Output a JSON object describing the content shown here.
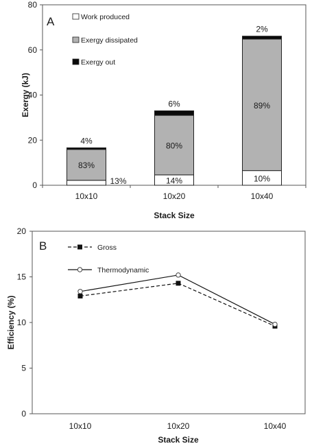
{
  "chart_data": [
    {
      "type": "bar",
      "stacked": true,
      "panel_label": "A",
      "categories": [
        "10x10",
        "10x20",
        "10x40"
      ],
      "series": [
        {
          "name": "Work produced",
          "values": [
            2.2,
            4.6,
            6.5
          ],
          "color": "#ffffff"
        },
        {
          "name": "Exergy dissipated",
          "values": [
            13.7,
            26.4,
            58.3
          ],
          "color": "#b2b2b2"
        },
        {
          "name": "Exergy out",
          "values": [
            0.7,
            2.0,
            1.3
          ],
          "color": "#0a0a0a"
        }
      ],
      "data_labels": {
        "Work produced": [
          "13%",
          "14%",
          "10%"
        ],
        "Exergy dissipated": [
          "83%",
          "80%",
          "89%"
        ],
        "Exergy out": [
          "4%",
          "6%",
          "2%"
        ]
      },
      "xlabel": "Stack Size",
      "ylabel": "Exergy (kJ)",
      "ylim": [
        0,
        80
      ],
      "yticks": [
        0,
        20,
        40,
        60,
        80
      ],
      "legend_position": "top-left",
      "grid": false
    },
    {
      "type": "line",
      "panel_label": "B",
      "categories": [
        "10x10",
        "10x20",
        "10x40"
      ],
      "series": [
        {
          "name": "Gross",
          "values": [
            12.9,
            14.3,
            9.6
          ],
          "style": "dashed",
          "marker": "filled-square"
        },
        {
          "name": "Thermodynamic",
          "values": [
            13.4,
            15.2,
            9.8
          ],
          "style": "solid",
          "marker": "open-circle"
        }
      ],
      "xlabel": "Stack Size",
      "ylabel": "Efficiency (%)",
      "ylim": [
        0,
        20
      ],
      "yticks": [
        0,
        5,
        10,
        15,
        20
      ],
      "legend_position": "top-left",
      "grid": false
    }
  ]
}
